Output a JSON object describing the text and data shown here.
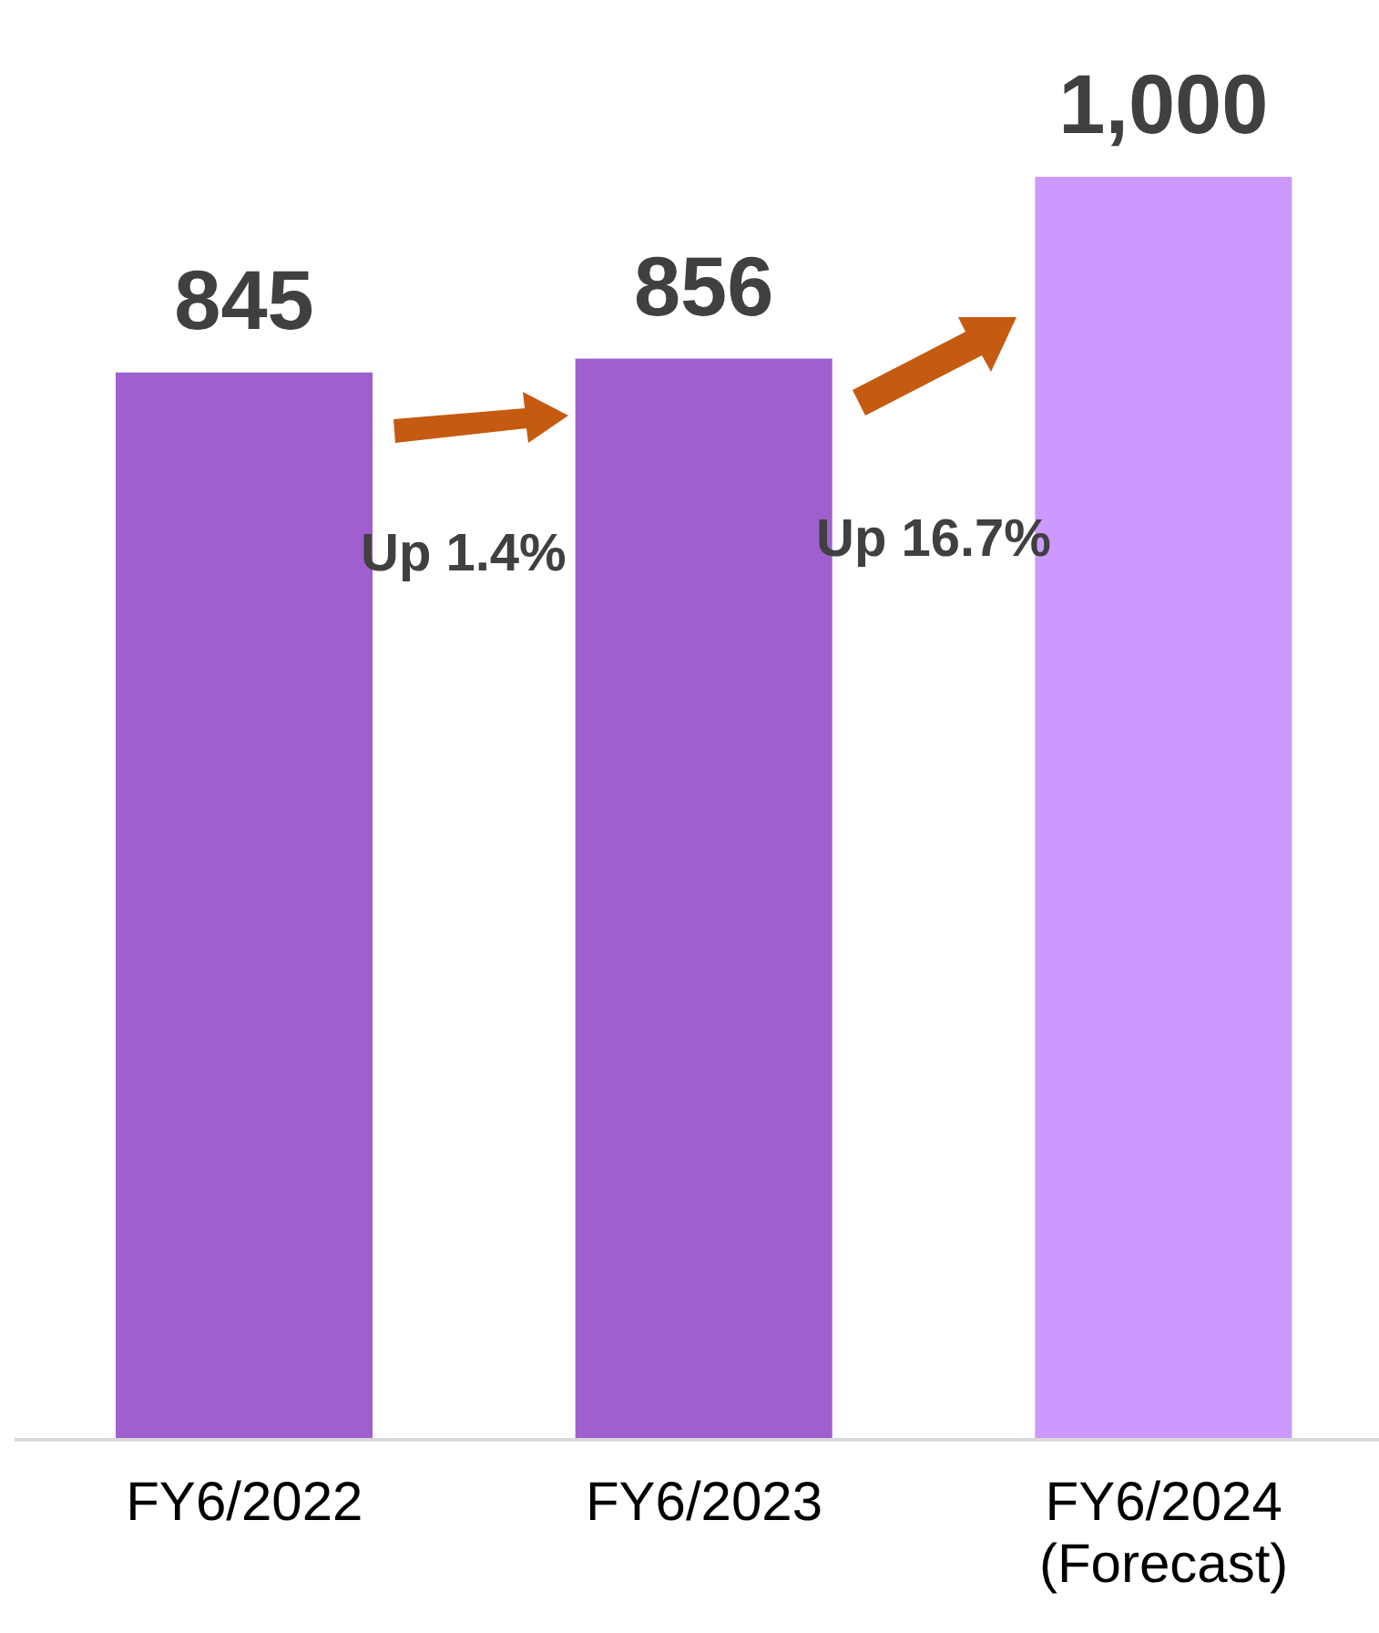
{
  "chart_data": {
    "type": "bar",
    "categories": [
      "FY6/2022",
      "FY6/2023",
      "FY6/2024\n(Forecast)"
    ],
    "values": [
      845,
      856,
      1000
    ],
    "colors": [
      "#9f5fce",
      "#9f5fce",
      "#cc99ff"
    ],
    "value_labels": [
      "845",
      "856",
      "1,000"
    ],
    "annotations": [
      "Up 1.4%",
      "Up 16.7%"
    ]
  }
}
